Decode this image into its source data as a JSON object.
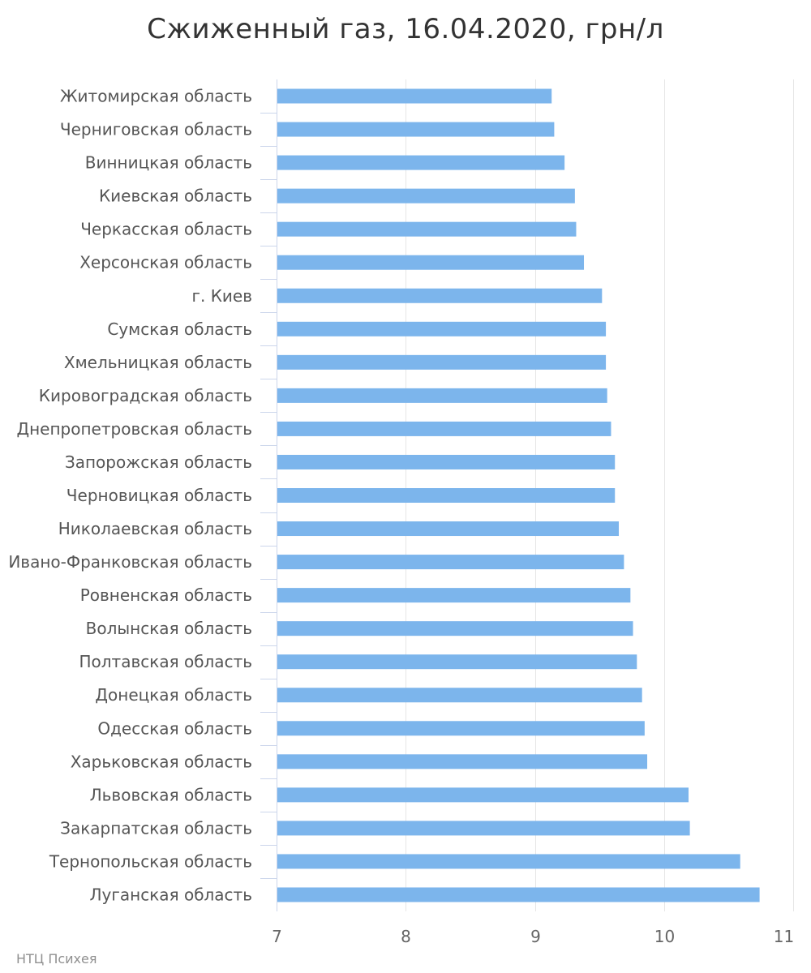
{
  "title": "Сжиженный газ, 16.04.2020, грн/л",
  "credits": "НТЦ Психея",
  "chart_data": {
    "type": "bar",
    "orientation": "horizontal",
    "title": "Сжиженный газ, 16.04.2020, грн/л",
    "xlabel": "",
    "ylabel": "",
    "xlim": [
      7,
      11
    ],
    "ticks": [
      7,
      8,
      9,
      10,
      11
    ],
    "tick_labels": [
      "7",
      "8",
      "9",
      "10",
      "11"
    ],
    "grid": true,
    "legend": "none",
    "bar_color": "#7cb5ec",
    "categories": [
      "Житомирская область",
      "Черниговская область",
      "Винницкая область",
      "Киевская область",
      "Черкасская область",
      "Херсонская область",
      "г. Киев",
      "Сумская область",
      "Хмельницкая область",
      "Кировоградская область",
      "Днепропетровская область",
      "Запорожская область",
      "Черновицкая область",
      "Николаевская область",
      "Ивано-Франковская область",
      "Ровненская область",
      "Волынская область",
      "Полтавская область",
      "Донецкая область",
      "Одесская область",
      "Харьковская область",
      "Львовская область",
      "Закарпатская область",
      "Тернопольская область",
      "Луганская область"
    ],
    "values": [
      9.13,
      9.15,
      9.23,
      9.31,
      9.32,
      9.38,
      9.52,
      9.55,
      9.55,
      9.56,
      9.59,
      9.62,
      9.62,
      9.65,
      9.69,
      9.74,
      9.76,
      9.79,
      9.83,
      9.85,
      9.87,
      10.19,
      10.2,
      10.59,
      10.74
    ]
  }
}
